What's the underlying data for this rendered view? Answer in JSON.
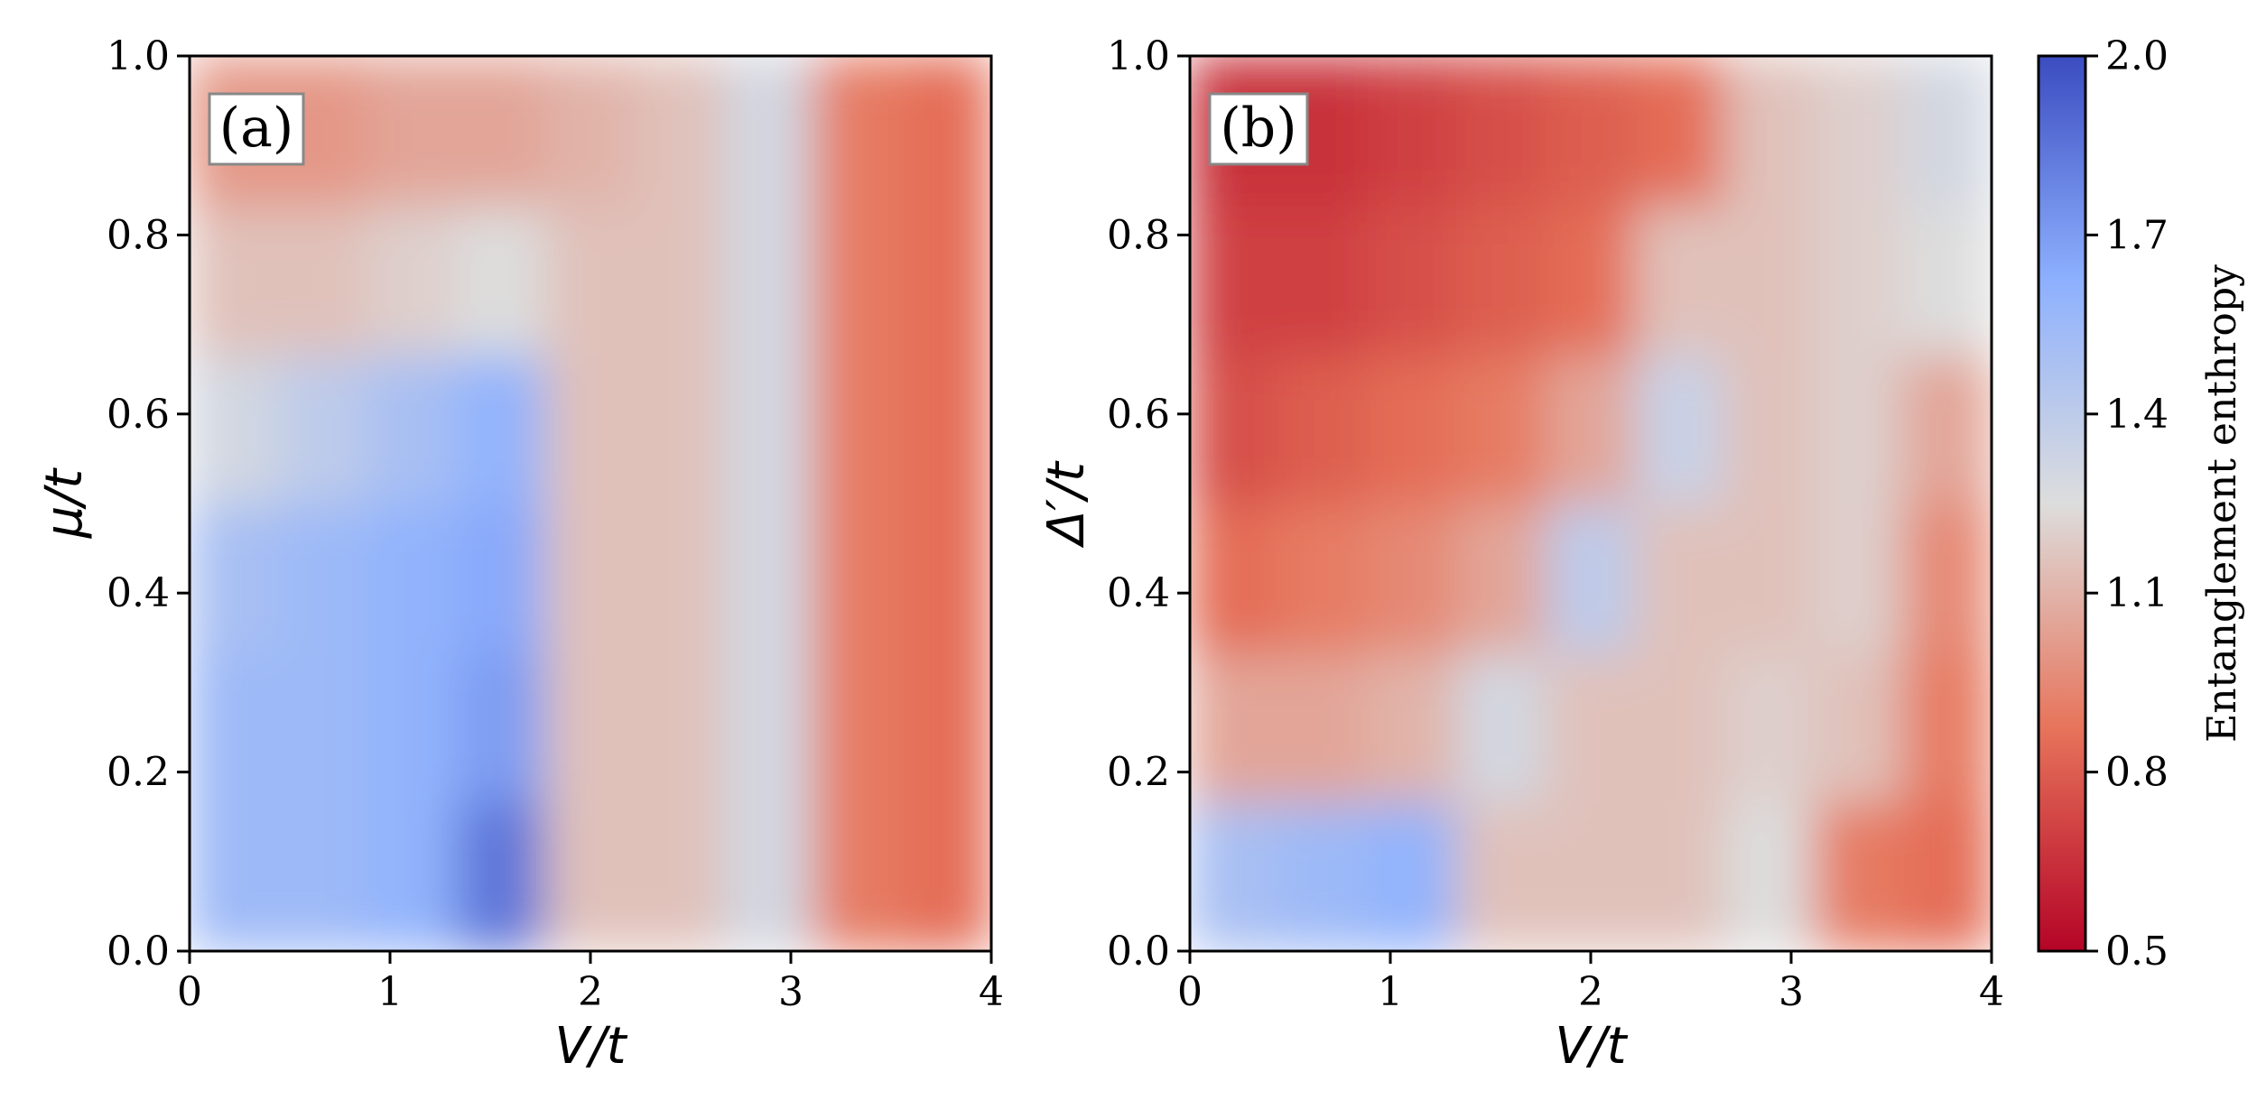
{
  "chart_data": [
    {
      "type": "heatmap",
      "panel_label": "(a)",
      "xlabel": "V/t",
      "ylabel": "μ/t",
      "xlim": [
        0,
        4
      ],
      "ylim": [
        0.0,
        1.0
      ],
      "xticks": [
        "0",
        "1",
        "2",
        "3",
        "4"
      ],
      "yticks": [
        "0.0",
        "0.2",
        "0.4",
        "0.6",
        "0.8",
        "1.0"
      ],
      "x_values": [
        0,
        0.5,
        1,
        1.5,
        2,
        2.5,
        3,
        3.5,
        4
      ],
      "y_values": [
        0.0,
        0.2,
        0.4,
        0.6,
        0.8,
        1.0
      ],
      "z_values": [
        [
          1.55,
          1.55,
          1.6,
          1.85,
          1.15,
          1.15,
          1.3,
          0.9,
          0.85
        ],
        [
          1.55,
          1.55,
          1.6,
          1.7,
          1.15,
          1.15,
          1.3,
          0.9,
          0.85
        ],
        [
          1.5,
          1.55,
          1.6,
          1.65,
          1.15,
          1.15,
          1.3,
          0.9,
          0.85
        ],
        [
          1.3,
          1.4,
          1.5,
          1.6,
          1.15,
          1.15,
          1.3,
          0.9,
          0.85
        ],
        [
          1.15,
          1.15,
          1.2,
          1.25,
          1.15,
          1.15,
          1.3,
          0.9,
          0.85
        ],
        [
          1.0,
          1.0,
          1.05,
          1.05,
          1.1,
          1.15,
          1.3,
          0.9,
          0.85
        ]
      ],
      "grid": false
    },
    {
      "type": "heatmap",
      "panel_label": "(b)",
      "xlabel": "V/t",
      "ylabel": "Δ′/t",
      "xlim": [
        0,
        4
      ],
      "ylim": [
        0.0,
        1.0
      ],
      "xticks": [
        "0",
        "1",
        "2",
        "3",
        "4"
      ],
      "yticks": [
        "0.0",
        "0.2",
        "0.4",
        "0.6",
        "0.8",
        "1.0"
      ],
      "x_values": [
        0,
        0.5,
        1,
        1.5,
        2,
        2.5,
        3,
        3.5,
        4
      ],
      "y_values": [
        0.0,
        0.2,
        0.4,
        0.6,
        0.8,
        1.0
      ],
      "z_values": [
        [
          1.5,
          1.55,
          1.6,
          1.15,
          1.15,
          1.15,
          1.25,
          0.9,
          0.85
        ],
        [
          1.05,
          1.05,
          1.1,
          1.3,
          1.15,
          1.15,
          1.2,
          1.15,
          0.9
        ],
        [
          0.85,
          0.9,
          0.95,
          1.05,
          1.4,
          1.15,
          1.15,
          1.2,
          0.95
        ],
        [
          0.75,
          0.8,
          0.85,
          0.9,
          1.05,
          1.35,
          1.15,
          1.2,
          1.05
        ],
        [
          0.7,
          0.7,
          0.75,
          0.8,
          0.85,
          1.15,
          1.15,
          1.2,
          1.25
        ],
        [
          0.65,
          0.65,
          0.7,
          0.75,
          0.8,
          0.85,
          1.15,
          1.2,
          1.3
        ]
      ],
      "grid": false
    }
  ],
  "colorbar": {
    "label": "Entanglement enthropy",
    "min": 0.5,
    "max": 2.0,
    "ticks": [
      "2.0",
      "1.7",
      "1.4",
      "1.1",
      "0.8",
      "0.5"
    ],
    "colormap": "coolwarm_r",
    "color_low": "#b40426",
    "color_mid": "#dddddd",
    "color_high": "#3b4cc0"
  }
}
